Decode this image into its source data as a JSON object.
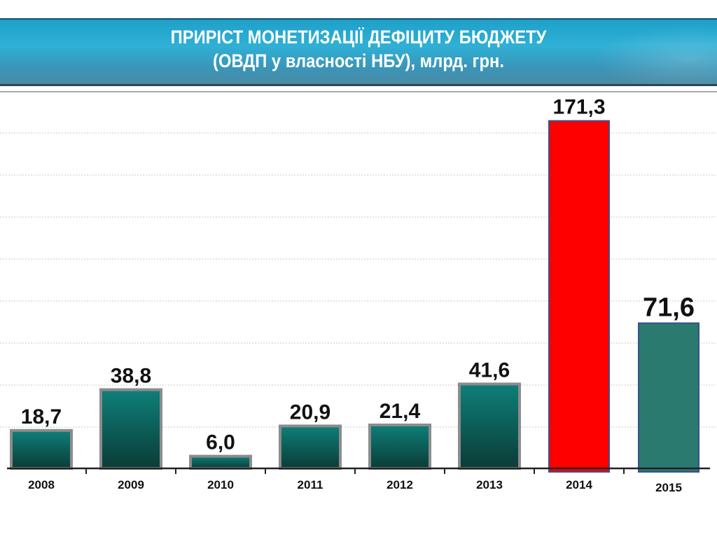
{
  "chart_data": {
    "type": "bar",
    "title": "ПРИРІСТ МОНЕТИЗАЦІЇ  ДЕФІЦИТУ  БЮДЖЕТУ",
    "subtitle": "(ОВДП у власності НБУ), млрд. грн.",
    "categories": [
      "2008",
      "2009",
      "2010",
      "2011",
      "2012",
      "2013",
      "2014",
      "2015"
    ],
    "values": [
      18.7,
      38.8,
      6.0,
      20.9,
      21.4,
      41.6,
      171.3,
      71.6
    ],
    "data_labels": [
      "18,7",
      "38,8",
      "6,0",
      "20,9",
      "21,4",
      "41,6",
      "171,3",
      "71,6"
    ],
    "ylim": [
      0,
      186
    ],
    "grid": true,
    "colors": {
      "default": "#0e7a74",
      "default_dark": "#0a3f3a",
      "highlight_2014": "#ff0000",
      "bar_2015": "#2a7a70",
      "border": "#8c8c8c",
      "border_highlight": "#3a4f8c"
    }
  }
}
